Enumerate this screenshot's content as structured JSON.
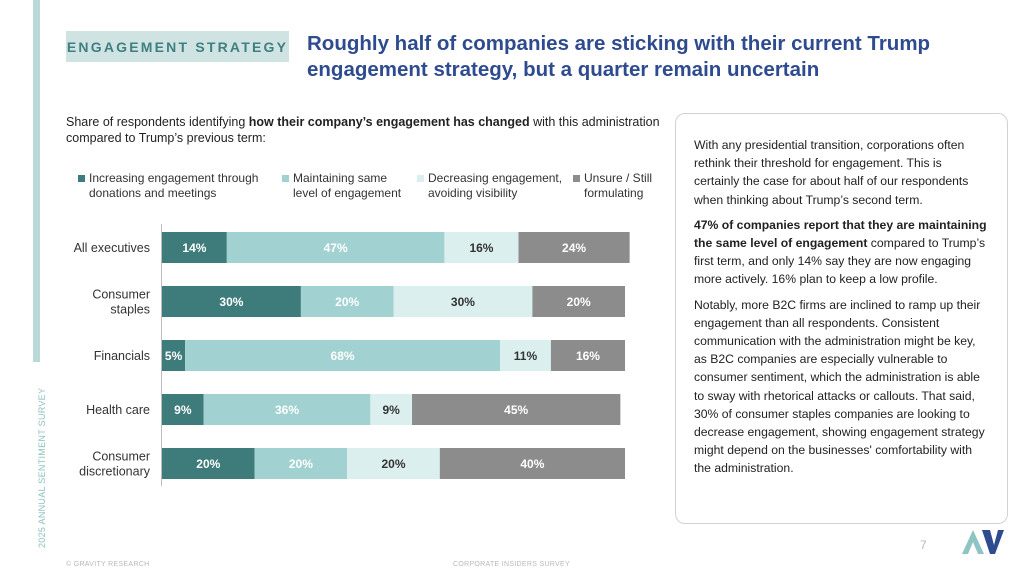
{
  "side_label": "2025 ANNUAL SENTIMENT SURVEY",
  "tag": "ENGAGEMENT STRATEGY",
  "title": "Roughly half of companies are sticking with their current Trump engagement strategy, but a quarter remain uncertain",
  "subtitle": {
    "part1": "Share of respondents identifying ",
    "bold": "how their company’s engagement has changed",
    "part2": " with this administration compared to Trump’s previous term:"
  },
  "textbox": {
    "p1": "With any presidential transition, corporations often rethink their threshold for engagement. This is certainly the case for about half of our respondents when thinking about Trump’s second term.",
    "p2_bold": "47% of companies report that they are maintaining the same level of engagement",
    "p2_rest": " compared to Trump’s first term, and only 14% say they are now engaging more actively. 16% plan to keep a low profile.",
    "p3": "Notably, more B2C firms are inclined to ramp up their engagement than all respondents. Consistent communication with the administration might be key, as B2C companies are especially vulnerable to consumer sentiment, which the administration is able to sway with rhetorical attacks or callouts. That said, 30% of consumer staples companies are looking to decrease engagement, showing engagement strategy might depend on the businesses' comfortability with the administration."
  },
  "footer": {
    "left": "© GRAVITY RESEARCH",
    "middle": "CORPORATE INSIDERS SURVEY",
    "page": "7"
  },
  "colors": {
    "brand": "#2e4b8f",
    "accent": "#3f7f7f",
    "bar_dark": "#3e7c7b",
    "bar_mid": "#a2d1d1",
    "bar_light": "#dcefef",
    "bar_gray": "#8c8c8c"
  },
  "logo_icon": "gravity-research-logo",
  "chart_data": {
    "type": "bar",
    "orientation": "horizontal",
    "stacked": true,
    "unit": "%",
    "categories": [
      "All executives",
      "Consumer staples",
      "Financials",
      "Health care",
      "Consumer discretionary"
    ],
    "category_lines": [
      [
        "All executives"
      ],
      [
        "Consumer",
        "staples"
      ],
      [
        "Financials"
      ],
      [
        "Health care"
      ],
      [
        "Consumer",
        "discretionary"
      ]
    ],
    "series": [
      {
        "name": "Increasing engagement through donations and meetings",
        "name_lines": [
          "Increasing engagement through",
          "donations and meetings"
        ],
        "color": "#3e7c7b",
        "label_color": "#ffffff",
        "values": [
          14,
          30,
          5,
          9,
          20
        ]
      },
      {
        "name": "Maintaining same level of engagement",
        "name_lines": [
          "Maintaining same",
          "level of engagement"
        ],
        "color": "#a2d1d1",
        "label_color": "#ffffff",
        "values": [
          47,
          20,
          68,
          36,
          20
        ]
      },
      {
        "name": "Decreasing engagement, avoiding visibility",
        "name_lines": [
          "Decreasing engagement,",
          "avoiding visibility"
        ],
        "color": "#dcefef",
        "label_color": "#333333",
        "values": [
          16,
          30,
          11,
          9,
          20
        ]
      },
      {
        "name": "Unsure / Still formulating",
        "name_lines": [
          "Unsure / Still",
          "formulating"
        ],
        "color": "#8c8c8c",
        "label_color": "#ffffff",
        "values": [
          24,
          20,
          16,
          45,
          40
        ]
      }
    ],
    "xlim": [
      0,
      100
    ],
    "grid": false,
    "legend": "top"
  }
}
